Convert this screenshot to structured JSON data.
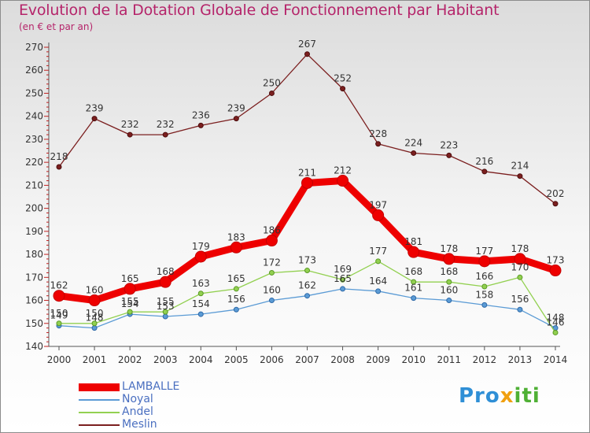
{
  "title": "Evolution de la Dotation Globale de Fonctionnement par Habitant",
  "subtitle": "(en € et par an)",
  "logo": {
    "part1": "Pro",
    "part2": "x",
    "part3": "iti"
  },
  "chart_data": {
    "type": "line",
    "categories": [
      "2000",
      "2001",
      "2002",
      "2003",
      "2004",
      "2005",
      "2006",
      "2007",
      "2008",
      "2009",
      "2010",
      "2011",
      "2012",
      "2013",
      "2014"
    ],
    "ylim": [
      140,
      270
    ],
    "yticks": [
      140,
      150,
      160,
      170,
      180,
      190,
      200,
      210,
      220,
      230,
      240,
      250,
      260,
      270
    ],
    "grid": false,
    "legend_position": "bottom-left",
    "series": [
      {
        "name": "LAMBALLE",
        "color": "#ee0000",
        "values": [
          162,
          160,
          165,
          168,
          179,
          183,
          186,
          211,
          212,
          197,
          181,
          178,
          177,
          178,
          173
        ]
      },
      {
        "name": "Noyal",
        "color": "#5b9bd5",
        "values": [
          149,
          148,
          154,
          153,
          154,
          156,
          160,
          162,
          165,
          164,
          161,
          160,
          158,
          156,
          148
        ]
      },
      {
        "name": "Andel",
        "color": "#92d050",
        "values": [
          150,
          150,
          155,
          155,
          163,
          165,
          172,
          173,
          169,
          177,
          168,
          168,
          166,
          170,
          146
        ]
      },
      {
        "name": "Meslin",
        "color": "#7b1f1f",
        "values": [
          218,
          239,
          232,
          232,
          236,
          239,
          250,
          267,
          252,
          228,
          224,
          223,
          216,
          214,
          202
        ]
      }
    ]
  }
}
